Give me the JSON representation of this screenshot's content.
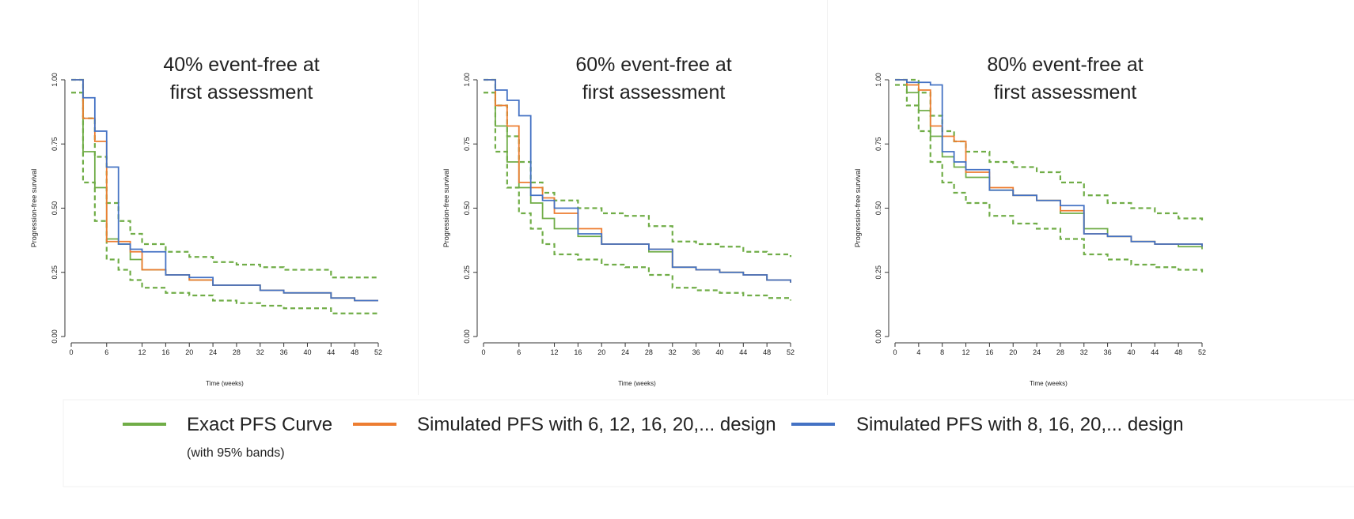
{
  "chart_data": [
    {
      "type": "line",
      "step": true,
      "title": [
        "40% event-free at",
        "first assessment"
      ],
      "y_label": "Progression-free survival",
      "x_label": "Time (weeks)",
      "x": [
        0,
        2,
        4,
        6,
        8,
        10,
        12,
        16,
        20,
        24,
        28,
        32,
        36,
        40,
        44,
        48,
        52
      ],
      "xlim": [
        0,
        52
      ],
      "xticks": [
        0,
        6,
        12,
        16,
        20,
        24,
        28,
        32,
        36,
        40,
        44,
        48,
        52
      ],
      "ylim": [
        0,
        1
      ],
      "yticks": [
        {
          "value": 0,
          "label": "0.00"
        },
        {
          "value": 0.25,
          "label": "0.25"
        },
        {
          "value": 0.5,
          "label": "0.50"
        },
        {
          "value": 0.75,
          "label": "0.75"
        },
        {
          "value": 1,
          "label": "1.00"
        }
      ],
      "series": [
        {
          "name": "Exact PFS Curve",
          "color": "#70ad47",
          "values": [
            1.0,
            0.72,
            0.58,
            0.38,
            0.36,
            0.3,
            0.26,
            0.24,
            0.22,
            0.2,
            0.2,
            0.18,
            0.17,
            0.17,
            0.15,
            0.14,
            0.14
          ]
        },
        {
          "color": "#70ad47",
          "dashed": true,
          "values": [
            1.0,
            0.85,
            0.7,
            0.52,
            0.45,
            0.4,
            0.36,
            0.33,
            0.31,
            0.29,
            0.28,
            0.27,
            0.26,
            0.26,
            0.23,
            0.23,
            0.23
          ]
        },
        {
          "color": "#70ad47",
          "dashed": true,
          "values": [
            0.95,
            0.6,
            0.45,
            0.3,
            0.26,
            0.22,
            0.19,
            0.17,
            0.16,
            0.14,
            0.13,
            0.12,
            0.11,
            0.11,
            0.09,
            0.09,
            0.09
          ]
        },
        {
          "name": "Simulated PFS with 6, 12, 16, 20,... design",
          "color": "#ed7d31",
          "values": [
            1.0,
            0.85,
            0.76,
            0.37,
            0.37,
            0.33,
            0.26,
            0.24,
            0.22,
            0.2,
            0.2,
            0.18,
            0.17,
            0.17,
            0.15,
            0.14,
            0.14
          ]
        },
        {
          "name": "Simulated PFS with 8, 16, 20,... design",
          "color": "#4472c4",
          "values": [
            1.0,
            0.93,
            0.8,
            0.66,
            0.36,
            0.34,
            0.33,
            0.24,
            0.23,
            0.2,
            0.2,
            0.18,
            0.17,
            0.17,
            0.15,
            0.14,
            0.14
          ]
        }
      ]
    },
    {
      "type": "line",
      "step": true,
      "title": [
        "60% event-free at",
        "first assessment"
      ],
      "y_label": "Progression-free survival",
      "x_label": "Time (weeks)",
      "x": [
        0,
        2,
        4,
        6,
        8,
        10,
        12,
        16,
        20,
        24,
        28,
        32,
        36,
        40,
        44,
        48,
        52
      ],
      "xlim": [
        0,
        52
      ],
      "xticks": [
        0,
        6,
        12,
        16,
        20,
        24,
        28,
        32,
        36,
        40,
        44,
        48,
        52
      ],
      "ylim": [
        0,
        1
      ],
      "yticks": [
        {
          "value": 0,
          "label": "0.00"
        },
        {
          "value": 0.25,
          "label": "0.25"
        },
        {
          "value": 0.5,
          "label": "0.50"
        },
        {
          "value": 0.75,
          "label": "0.75"
        },
        {
          "value": 1,
          "label": "1.00"
        }
      ],
      "series": [
        {
          "name": "Exact PFS Curve",
          "color": "#70ad47",
          "values": [
            1.0,
            0.82,
            0.68,
            0.58,
            0.52,
            0.46,
            0.42,
            0.39,
            0.36,
            0.36,
            0.33,
            0.27,
            0.26,
            0.25,
            0.24,
            0.22,
            0.21
          ]
        },
        {
          "color": "#70ad47",
          "dashed": true,
          "values": [
            1.0,
            0.9,
            0.78,
            0.68,
            0.6,
            0.56,
            0.53,
            0.5,
            0.48,
            0.47,
            0.43,
            0.37,
            0.36,
            0.35,
            0.33,
            0.32,
            0.31
          ]
        },
        {
          "color": "#70ad47",
          "dashed": true,
          "values": [
            0.95,
            0.72,
            0.58,
            0.48,
            0.42,
            0.36,
            0.32,
            0.3,
            0.28,
            0.27,
            0.24,
            0.19,
            0.18,
            0.17,
            0.16,
            0.15,
            0.14
          ]
        },
        {
          "name": "Simulated PFS with 6, 12, 16, 20,... design",
          "color": "#ed7d31",
          "values": [
            1.0,
            0.9,
            0.82,
            0.6,
            0.58,
            0.54,
            0.48,
            0.42,
            0.36,
            0.36,
            0.34,
            0.27,
            0.26,
            0.25,
            0.24,
            0.22,
            0.21
          ]
        },
        {
          "name": "Simulated PFS with 8, 16, 20,... design",
          "color": "#4472c4",
          "values": [
            1.0,
            0.96,
            0.92,
            0.86,
            0.55,
            0.53,
            0.5,
            0.4,
            0.36,
            0.36,
            0.34,
            0.27,
            0.26,
            0.25,
            0.24,
            0.22,
            0.21
          ]
        }
      ]
    },
    {
      "type": "line",
      "step": true,
      "title": [
        "80% event-free at",
        "first assessment"
      ],
      "y_label": "Progression-free survival",
      "x_label": "Time (weeks)",
      "x": [
        0,
        2,
        4,
        6,
        8,
        10,
        12,
        16,
        20,
        24,
        28,
        32,
        36,
        40,
        44,
        48,
        52
      ],
      "xlim": [
        0,
        52
      ],
      "xticks": [
        0,
        4,
        8,
        12,
        16,
        20,
        24,
        28,
        32,
        36,
        40,
        44,
        48,
        52
      ],
      "ylim": [
        0,
        1
      ],
      "yticks": [
        {
          "value": 0,
          "label": "0.00"
        },
        {
          "value": 0.25,
          "label": "0.25"
        },
        {
          "value": 0.5,
          "label": "0.50"
        },
        {
          "value": 0.75,
          "label": "0.75"
        },
        {
          "value": 1,
          "label": "1.00"
        }
      ],
      "series": [
        {
          "name": "Exact PFS Curve",
          "color": "#70ad47",
          "values": [
            1.0,
            0.95,
            0.88,
            0.78,
            0.7,
            0.66,
            0.62,
            0.57,
            0.55,
            0.53,
            0.48,
            0.42,
            0.39,
            0.37,
            0.36,
            0.35,
            0.34
          ]
        },
        {
          "color": "#70ad47",
          "dashed": true,
          "values": [
            1.0,
            1.0,
            0.95,
            0.86,
            0.8,
            0.76,
            0.72,
            0.68,
            0.66,
            0.64,
            0.6,
            0.55,
            0.52,
            0.5,
            0.48,
            0.46,
            0.45
          ]
        },
        {
          "color": "#70ad47",
          "dashed": true,
          "values": [
            0.98,
            0.9,
            0.8,
            0.68,
            0.6,
            0.56,
            0.52,
            0.47,
            0.44,
            0.42,
            0.38,
            0.32,
            0.3,
            0.28,
            0.27,
            0.26,
            0.25
          ]
        },
        {
          "name": "Simulated PFS with 6, 12, 16, 20,... design",
          "color": "#ed7d31",
          "values": [
            1.0,
            0.98,
            0.96,
            0.82,
            0.78,
            0.76,
            0.64,
            0.58,
            0.55,
            0.53,
            0.49,
            0.4,
            0.39,
            0.37,
            0.36,
            0.36,
            0.35
          ]
        },
        {
          "name": "Simulated PFS with 8, 16, 20,... design",
          "color": "#4472c4",
          "values": [
            1.0,
            0.99,
            0.99,
            0.98,
            0.72,
            0.68,
            0.65,
            0.57,
            0.55,
            0.53,
            0.51,
            0.4,
            0.39,
            0.37,
            0.36,
            0.36,
            0.35
          ]
        }
      ]
    }
  ],
  "legend_note": "(with 95% bands)"
}
